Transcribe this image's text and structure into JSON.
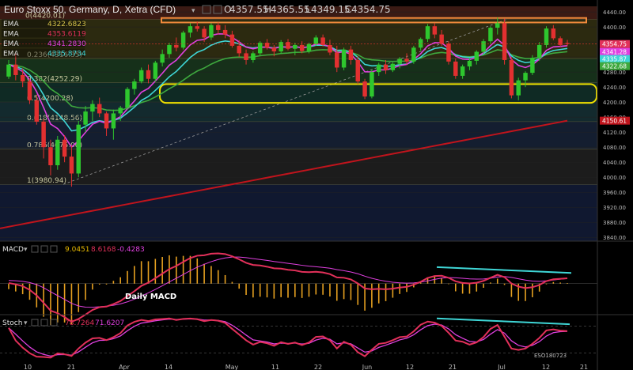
{
  "header": {
    "title": "Euro Stoxx 50, Germany, D, Xetra (CFD)",
    "open": "4357.55",
    "high": "4365.55",
    "low": "4349.15",
    "close": "4354.75"
  },
  "ema_legend": [
    {
      "label": "EMA",
      "value": "4322.6823",
      "color": "#d4c24a"
    },
    {
      "label": "EMA",
      "value": "4353.6119",
      "color": "#e2305a"
    },
    {
      "label": "EMA",
      "value": "4341.2830",
      "color": "#e040e0"
    },
    {
      "label": "EMA",
      "value": "4335.8734",
      "color": "#3fd6d6"
    }
  ],
  "macd_header": {
    "label": "MACD",
    "v1": "9.0451",
    "v2": "8.6168",
    "v3": "-0.4283"
  },
  "stoch_header": {
    "label": "Stoch",
    "v1": "78.7264",
    "v2": "71.6207"
  },
  "annotations": {
    "macd_label": "Daily MACD",
    "signature": "ESO180723"
  },
  "fib_labels": [
    {
      "text": "0(4420.01)",
      "value": 4420
    },
    {
      "text": "0.236(4316.35)",
      "value": 4316
    },
    {
      "text": "0.382(4252.29)",
      "value": 4252
    },
    {
      "text": "0.5(4200.28)",
      "value": 4200
    },
    {
      "text": "0.618(4148.56)",
      "value": 4148
    },
    {
      "text": "0.786(4075.00)",
      "value": 4075
    },
    {
      "text": "1(3980.94)",
      "value": 3981
    }
  ],
  "price_scale_ticks": [
    "4440.00",
    "4400.00",
    "4360.00",
    "4320.00",
    "4280.00",
    "4240.00",
    "4200.00",
    "4160.00",
    "4120.00",
    "4080.00",
    "4040.00",
    "4000.00",
    "3960.00",
    "3920.00",
    "3880.00",
    "3840.00"
  ],
  "price_badges": [
    {
      "text": "4354.75",
      "value": 4354.75,
      "color": "#e2305a"
    },
    {
      "text": "4341.28",
      "value": 4341.28,
      "color": "#e040e0"
    },
    {
      "text": "4335.87",
      "value": 4335.87,
      "color": "#3fd6d6"
    },
    {
      "text": "4322.68",
      "value": 4322.68,
      "color": "#3ea83e"
    },
    {
      "text": "4150.61",
      "value": 4150.61,
      "color": "#c0141c"
    }
  ],
  "macd_scale_ticks": [
    "60.000",
    "40.000",
    "20.000",
    "0.000",
    "-20.000",
    "-40.000"
  ],
  "macd_badges": [
    {
      "text": "9.0451",
      "value": 9.0451,
      "color": "#e6b800"
    },
    {
      "text": "8.6168",
      "value": 8.6168,
      "color": "#e2305a"
    },
    {
      "text": "-0.4283",
      "value": -0.4283,
      "color": "#e040e0"
    }
  ],
  "stoch_scale_ticks": [
    "80.0000",
    "40.0000"
  ],
  "stoch_badges": [
    {
      "text": "78.7264",
      "value": 78.7264,
      "color": "#e2305a"
    },
    {
      "text": "71.6207",
      "value": 71.6207,
      "color": "#e040e0"
    }
  ],
  "x_axis_labels": [
    "10",
    "21",
    "Apr",
    "14",
    "May",
    "11",
    "22",
    "Jun",
    "12",
    "21",
    "Jul",
    "12",
    "21"
  ],
  "colors": {
    "bull": "#2ec72e",
    "bear": "#e23030",
    "ema_fast": "#e2305a",
    "ema_mid": "#e040e0",
    "ema_teal": "#3fd6d6",
    "ema_green": "#3ea83e",
    "ema_long": "#c0141c",
    "resistance": "#f08a3c",
    "support": "#f0e000",
    "signal": "#3fd6d6"
  },
  "chart_data": [
    {
      "type": "candlestick",
      "title": "Euro Stoxx 50, Germany, D, Xetra (CFD)",
      "ylim": [
        3830,
        4455
      ],
      "candles": [
        [
          4268,
          4312,
          4262,
          4300
        ],
        [
          4300,
          4330,
          4258,
          4272
        ],
        [
          4272,
          4290,
          4240,
          4255
        ],
        [
          4255,
          4262,
          4195,
          4205
        ],
        [
          4205,
          4220,
          4140,
          4148
        ],
        [
          4148,
          4155,
          4050,
          4080
        ],
        [
          4080,
          4100,
          4005,
          4032
        ],
        [
          4032,
          4110,
          4020,
          4100
        ],
        [
          4100,
          4112,
          4040,
          4055
        ],
        [
          4055,
          4085,
          3975,
          4010
        ],
        [
          4010,
          4150,
          4000,
          4140
        ],
        [
          4140,
          4190,
          4120,
          4175
        ],
        [
          4175,
          4205,
          4150,
          4195
        ],
        [
          4195,
          4212,
          4160,
          4170
        ],
        [
          4170,
          4175,
          4110,
          4130
        ],
        [
          4130,
          4180,
          4100,
          4170
        ],
        [
          4170,
          4190,
          4150,
          4185
        ],
        [
          4185,
          4240,
          4180,
          4235
        ],
        [
          4235,
          4262,
          4220,
          4255
        ],
        [
          4255,
          4292,
          4250,
          4285
        ],
        [
          4285,
          4300,
          4250,
          4262
        ],
        [
          4262,
          4310,
          4255,
          4305
        ],
        [
          4305,
          4340,
          4295,
          4328
        ],
        [
          4328,
          4358,
          4318,
          4352
        ],
        [
          4352,
          4372,
          4335,
          4345
        ],
        [
          4345,
          4390,
          4340,
          4385
        ],
        [
          4385,
          4410,
          4372,
          4402
        ],
        [
          4402,
          4415,
          4388,
          4395
        ],
        [
          4395,
          4402,
          4360,
          4372
        ],
        [
          4372,
          4410,
          4365,
          4405
        ],
        [
          4405,
          4412,
          4380,
          4392
        ],
        [
          4392,
          4405,
          4370,
          4380
        ],
        [
          4380,
          4390,
          4345,
          4350
        ],
        [
          4350,
          4365,
          4320,
          4330
        ],
        [
          4330,
          4340,
          4300,
          4312
        ],
        [
          4312,
          4335,
          4305,
          4330
        ],
        [
          4330,
          4362,
          4325,
          4358
        ],
        [
          4358,
          4368,
          4340,
          4345
        ],
        [
          4345,
          4352,
          4322,
          4335
        ],
        [
          4335,
          4365,
          4330,
          4360
        ],
        [
          4360,
          4368,
          4338,
          4342
        ],
        [
          4342,
          4358,
          4325,
          4352
        ],
        [
          4352,
          4362,
          4330,
          4336
        ],
        [
          4336,
          4358,
          4330,
          4355
        ],
        [
          4355,
          4378,
          4350,
          4372
        ],
        [
          4372,
          4380,
          4348,
          4352
        ],
        [
          4352,
          4366,
          4325,
          4332
        ],
        [
          4332,
          4350,
          4280,
          4292
        ],
        [
          4292,
          4345,
          4285,
          4340
        ],
        [
          4340,
          4350,
          4300,
          4312
        ],
        [
          4312,
          4322,
          4248,
          4255
        ],
        [
          4255,
          4262,
          4208,
          4215
        ],
        [
          4215,
          4285,
          4210,
          4280
        ],
        [
          4280,
          4305,
          4270,
          4300
        ],
        [
          4300,
          4312,
          4275,
          4285
        ],
        [
          4285,
          4306,
          4280,
          4302
        ],
        [
          4302,
          4320,
          4290,
          4315
        ],
        [
          4315,
          4330,
          4300,
          4308
        ],
        [
          4308,
          4350,
          4302,
          4345
        ],
        [
          4345,
          4372,
          4338,
          4368
        ],
        [
          4368,
          4408,
          4360,
          4402
        ],
        [
          4402,
          4410,
          4370,
          4380
        ],
        [
          4380,
          4392,
          4350,
          4356
        ],
        [
          4356,
          4362,
          4300,
          4308
        ],
        [
          4308,
          4316,
          4262,
          4270
        ],
        [
          4270,
          4300,
          4262,
          4295
        ],
        [
          4295,
          4316,
          4285,
          4310
        ],
        [
          4310,
          4338,
          4300,
          4334
        ],
        [
          4334,
          4368,
          4328,
          4362
        ],
        [
          4362,
          4402,
          4355,
          4398
        ],
        [
          4398,
          4425,
          4380,
          4410
        ],
        [
          4410,
          4422,
          4300,
          4312
        ],
        [
          4312,
          4320,
          4210,
          4218
        ],
        [
          4218,
          4265,
          4205,
          4258
        ],
        [
          4258,
          4282,
          4240,
          4278
        ],
        [
          4278,
          4325,
          4272,
          4318
        ],
        [
          4318,
          4360,
          4310,
          4352
        ],
        [
          4352,
          4402,
          4345,
          4396
        ],
        [
          4396,
          4405,
          4365,
          4370
        ],
        [
          4370,
          4375,
          4348,
          4352
        ],
        [
          4357.55,
          4365.55,
          4349.15,
          4354.75
        ]
      ],
      "resistance_zone": [
        4412,
        4424
      ],
      "support_zone": [
        4198,
        4248
      ],
      "fib_levels": [
        4420,
        4316,
        4252,
        4200,
        4148,
        4075,
        3981
      ],
      "ema200_end": 4150.61,
      "last_price": 4354.75
    },
    {
      "type": "macd",
      "title": "MACD",
      "ylim": [
        -50,
        68
      ],
      "macd_end": 9.0451,
      "signal_end": 8.6168,
      "histogram_end": -0.4283
    },
    {
      "type": "stochastic",
      "title": "Stoch",
      "ylim": [
        0,
        100
      ],
      "k_end": 78.7264,
      "d_end": 71.6207
    }
  ]
}
